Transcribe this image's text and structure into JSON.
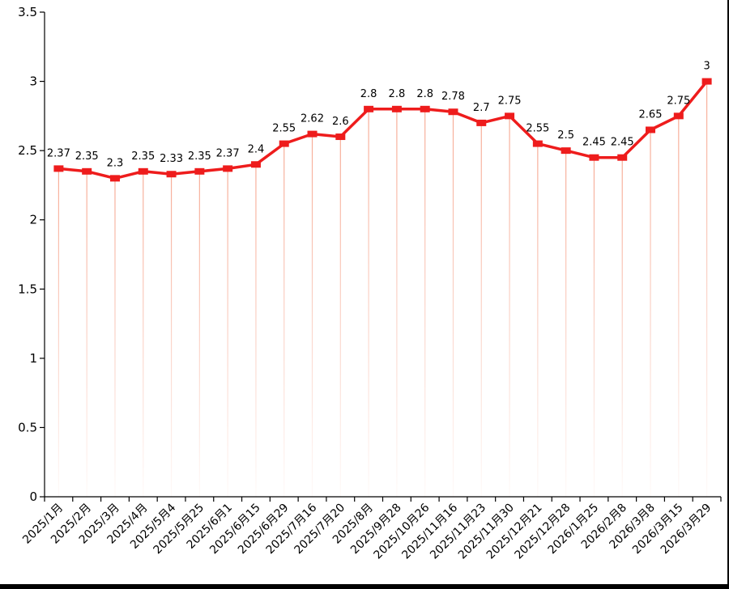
{
  "chart_data": {
    "type": "line",
    "title": "",
    "xlabel": "",
    "ylabel": "",
    "ylim": [
      0,
      3.5
    ],
    "yticks": [
      "0",
      "0.5",
      "1",
      "1.5",
      "2",
      "2.5",
      "3",
      "3.5"
    ],
    "grid": false,
    "legend": "none",
    "colors": {
      "line": "#ee1c1c",
      "drop_line": "#f6a38b",
      "axis": "#000000"
    },
    "categories": [
      "2025/1月",
      "2025/2月",
      "2025/3月",
      "2025/4月",
      "2025/5月4",
      "2025/5月25",
      "2025/6月1",
      "2025/6月15",
      "2025/6月29",
      "2025/7月16",
      "2025/7月20",
      "2025/8月",
      "2025/9月28",
      "2025/10月26",
      "2025/11月16",
      "2025/11月23",
      "2025/11月30",
      "2025/12月21",
      "2025/12月28",
      "2026/1月25",
      "2026/2月8",
      "2026/3月8",
      "2026/3月15",
      "2026/3月29"
    ],
    "values": [
      2.37,
      2.35,
      2.3,
      2.35,
      2.33,
      2.35,
      2.37,
      2.4,
      2.55,
      2.62,
      2.6,
      2.8,
      2.8,
      2.8,
      2.78,
      2.7,
      2.75,
      2.55,
      2.5,
      2.45,
      2.45,
      2.65,
      2.75,
      3
    ],
    "data_labels": [
      "2.37",
      "2.35",
      "2.3",
      "2.35",
      "2.33",
      "2.35",
      "2.37",
      "2.4",
      "2.55",
      "2.62",
      "2.6",
      "2.8",
      "2.8",
      "2.8",
      "2.78",
      "2.7",
      "2.75",
      "2.55",
      "2.5",
      "2.45",
      "2.45",
      "2.65",
      "2.75",
      "3"
    ]
  }
}
